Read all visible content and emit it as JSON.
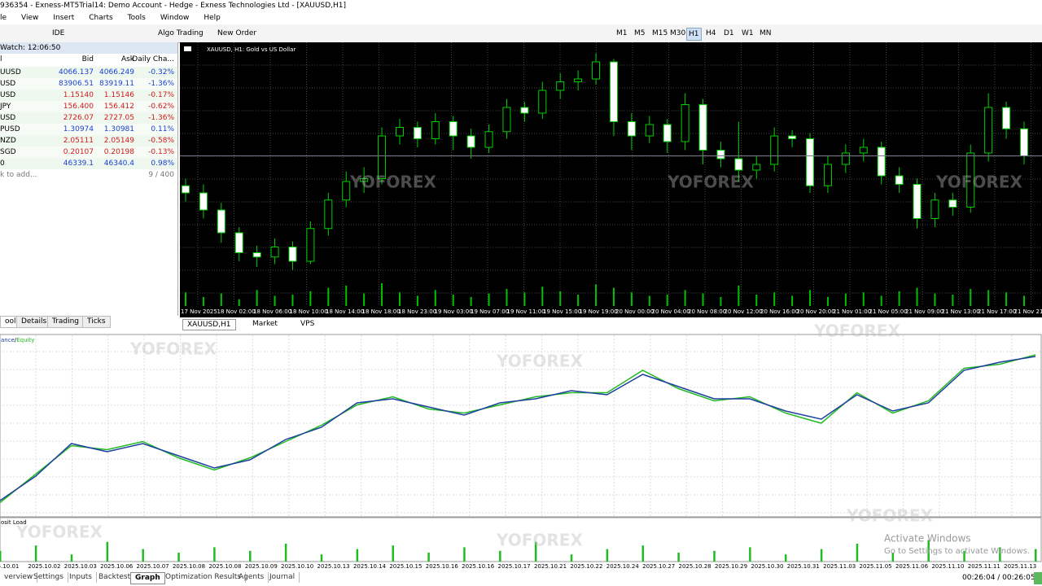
{
  "title_bar": "936354 - Exness-MT5Trial14: Demo Account - Hedge - Exness Technologies Ltd - [XAUUSD,H1]",
  "menu": [
    "le",
    "View",
    "Insert",
    "Charts",
    "Tools",
    "Window",
    "Help"
  ],
  "toolbar": {
    "ide": "IDE",
    "algo_trading": "Algo Trading",
    "new_order": "New Order",
    "timeframes": [
      "M1",
      "M5",
      "M15",
      "M30",
      "H1",
      "H4",
      "D1",
      "W1",
      "MN"
    ],
    "active_timeframe": 4
  },
  "market_watch": {
    "header": "Watch: 12:06:50",
    "columns": [
      "l",
      "Bid",
      "Ask",
      "Daily Cha..."
    ],
    "rows": [
      {
        "symbol": "UUSD",
        "bid": "4066.137",
        "ask": "4066.249",
        "change": "-0.32%",
        "color": "#1a3fd0"
      },
      {
        "symbol": "USD",
        "bid": "83906.51",
        "ask": "83919.11",
        "change": "-1.36%",
        "color": "#1a3fd0"
      },
      {
        "symbol": "USD",
        "bid": "1.15140",
        "ask": "1.15146",
        "change": "-0.17%",
        "color": "#d01a1a"
      },
      {
        "symbol": "JPY",
        "bid": "156.400",
        "ask": "156.412",
        "change": "-0.62%",
        "color": "#d01a1a"
      },
      {
        "symbol": "USD",
        "bid": "2726.07",
        "ask": "2727.05",
        "change": "-1.36%",
        "color": "#d01a1a"
      },
      {
        "symbol": "PUSD",
        "bid": "1.30974",
        "ask": "1.30981",
        "change": "0.11%",
        "color": "#1a3fd0"
      },
      {
        "symbol": "NZD",
        "bid": "2.05111",
        "ask": "2.05149",
        "change": "-0.58%",
        "color": "#d01a1a"
      },
      {
        "symbol": "SGD",
        "bid": "0.20107",
        "ask": "0.20198",
        "change": "-0.13%",
        "color": "#d01a1a"
      },
      {
        "symbol": "0",
        "bid": "46339.1",
        "ask": "46340.4",
        "change": "0.98%",
        "color": "#1a3fd0"
      }
    ],
    "add_row": "k to add...",
    "count": "9 / 400",
    "tabs": [
      "ools",
      "Details",
      "Trading",
      "Ticks"
    ]
  },
  "chart_tabs": [
    "XAUUSD,H1",
    "Market",
    "VPS"
  ],
  "tester_tabs": [
    "verview",
    "Settings",
    "Inputs",
    "Backtest",
    "Graph",
    "Optimization Results",
    "Agents",
    "Journal"
  ],
  "active_tester_tab": 4,
  "status_time": "00:26:04 / 00:26:05",
  "watermark": "YOFOREX",
  "activate": {
    "title": "Activate Windows",
    "subtitle": "Go to Settings to activate Windows."
  },
  "chart_data": [
    {
      "type": "candlestick",
      "title": "XAUUSD, H1:  Gold vs US Dollar",
      "up_color": "#00d000",
      "down_color": "#ffffff",
      "ylim": [
        3980,
        4140
      ],
      "x_labels": [
        "17 Nov 2025",
        "18 Nov 02:00",
        "18 Nov 06:00",
        "18 Nov 10:00",
        "18 Nov 14:00",
        "18 Nov 18:00",
        "18 Nov 23:00",
        "19 Nov 03:00",
        "19 Nov 07:00",
        "19 Nov 11:00",
        "19 Nov 15:00",
        "19 Nov 19:00",
        "20 Nov 00:00",
        "20 Nov 04:00",
        "20 Nov 08:00",
        "20 Nov 12:00",
        "20 Nov 16:00",
        "20 Nov 20:00",
        "21 Nov 01:00",
        "21 Nov 05:00",
        "21 Nov 09:00",
        "21 Nov 13:00",
        "21 Nov 17:00",
        "21 Nov 21:"
      ],
      "open": [
        4045,
        4040,
        4028,
        4012,
        3998,
        3995,
        4002,
        3992,
        4015,
        4035,
        4048,
        4050,
        4080,
        4086,
        4078,
        4090,
        4080,
        4072,
        4083,
        4100,
        4096,
        4112,
        4118,
        4120,
        4132,
        4090,
        4080,
        4088,
        4076,
        4102,
        4070,
        4064,
        4056,
        4060,
        4080,
        4078,
        4045,
        4060,
        4068,
        4072,
        4052,
        4046,
        4022,
        4035,
        4030,
        4068,
        4100,
        4085
      ],
      "high": [
        4050,
        4046,
        4033,
        4016,
        4003,
        4008,
        4006,
        4020,
        4040,
        4055,
        4058,
        4086,
        4092,
        4090,
        4096,
        4094,
        4085,
        4088,
        4106,
        4104,
        4118,
        4124,
        4126,
        4138,
        4134,
        4096,
        4094,
        4092,
        4110,
        4106,
        4076,
        4090,
        4066,
        4086,
        4084,
        4082,
        4066,
        4074,
        4078,
        4076,
        4058,
        4050,
        4040,
        4040,
        4074,
        4110,
        4104,
        4090
      ],
      "low": [
        4034,
        4022,
        4005,
        3992,
        3988,
        3990,
        3986,
        3990,
        4010,
        4030,
        4040,
        4046,
        4074,
        4072,
        4074,
        4070,
        4064,
        4068,
        4078,
        4090,
        4092,
        4106,
        4112,
        4116,
        4080,
        4070,
        4075,
        4068,
        4070,
        4060,
        4058,
        4048,
        4050,
        4055,
        4072,
        4040,
        4040,
        4054,
        4062,
        4046,
        4040,
        4015,
        4016,
        4024,
        4026,
        4062,
        4078,
        4060
      ],
      "close": [
        4040,
        4028,
        4012,
        3998,
        3995,
        4002,
        3992,
        4015,
        4035,
        4048,
        4050,
        4080,
        4086,
        4078,
        4090,
        4080,
        4072,
        4083,
        4100,
        4096,
        4112,
        4118,
        4120,
        4132,
        4090,
        4080,
        4088,
        4076,
        4102,
        4070,
        4064,
        4056,
        4060,
        4080,
        4078,
        4045,
        4060,
        4068,
        4072,
        4052,
        4046,
        4022,
        4035,
        4030,
        4068,
        4100,
        4085,
        4066
      ],
      "volume": [
        60,
        40,
        55,
        30,
        70,
        45,
        50,
        65,
        80,
        90,
        55,
        100,
        60,
        45,
        70,
        50,
        40,
        55,
        75,
        60,
        85,
        65,
        50,
        95,
        80,
        60,
        45,
        50,
        70,
        55,
        40,
        90,
        50,
        60,
        45,
        70,
        40,
        55,
        60,
        45,
        65,
        80,
        55,
        50,
        75,
        70,
        60,
        45
      ],
      "volume_color": "#00c000",
      "vlim": [
        0,
        100
      ]
    },
    {
      "type": "line",
      "ylim": [
        10000,
        14300
      ],
      "legend_separator": "/",
      "series": [
        {
          "name": "ance",
          "color": "#1f3fa0",
          "values": [
            10300,
            10900,
            11700,
            11500,
            11700,
            11400,
            11100,
            11300,
            11800,
            12100,
            12700,
            12800,
            12600,
            12400,
            12700,
            12800,
            13000,
            12900,
            13400,
            13100,
            12800,
            12800,
            12500,
            12300,
            12900,
            12500,
            12700,
            13500,
            13700,
            13840
          ]
        },
        {
          "name": "Equity",
          "color": "#22bb22",
          "values": [
            10250,
            10950,
            11650,
            11550,
            11750,
            11350,
            11050,
            11350,
            11750,
            12150,
            12650,
            12850,
            12550,
            12450,
            12650,
            12850,
            12950,
            12950,
            13500,
            13050,
            12750,
            12850,
            12450,
            12200,
            12950,
            12450,
            12750,
            13550,
            13650,
            13880
          ]
        }
      ]
    },
    {
      "type": "bar",
      "title": "osit Load",
      "color": "#22bb22",
      "ylim": [
        0,
        100
      ],
      "values": [
        30,
        45,
        20,
        55,
        35,
        25,
        40,
        30,
        50,
        20,
        35,
        45,
        25,
        40,
        30,
        55,
        20,
        35,
        45,
        25,
        30,
        40,
        20,
        35,
        50,
        25,
        60,
        30,
        40,
        35
      ],
      "x_labels": [
        "5.10.01",
        "2025.10.02",
        "2025.10.03",
        "2025.10.06",
        "2025.10.07",
        "2025.10.08",
        "2025.10.08",
        "2025.10.09",
        "2025.10.10",
        "2025.10.13",
        "2025.10.14",
        "2025.10.15",
        "2025.10.16",
        "2025.10.16",
        "2025.10.17",
        "2025.10.21",
        "2025.10.22",
        "2025.10.24",
        "2025.10.27",
        "2025.10.28",
        "2025.10.29",
        "2025.10.30",
        "2025.10.31",
        "2025.11.03",
        "2025.11.05",
        "2025.11.06",
        "2025.11.10",
        "2025.11.11",
        "2025.11.13"
      ]
    }
  ]
}
